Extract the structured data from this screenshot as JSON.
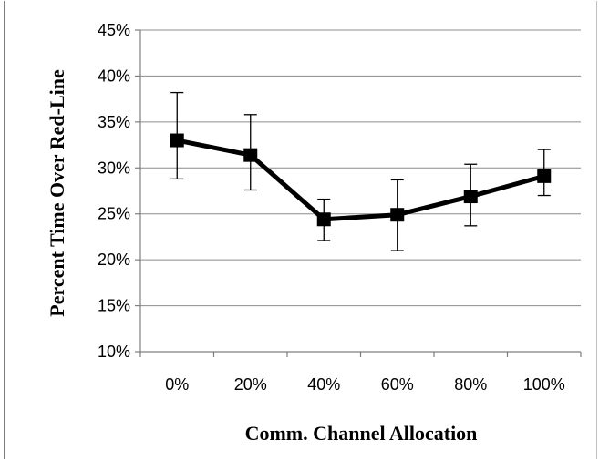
{
  "chart_data": {
    "type": "line",
    "xlabel": "Comm. Channel Allocation",
    "ylabel": "Percent Time Over Red-Line",
    "categories": [
      "0%",
      "20%",
      "40%",
      "60%",
      "80%",
      "100%"
    ],
    "ylim": [
      0.1,
      0.45
    ],
    "y_ticks": [
      "10%",
      "15%",
      "20%",
      "25%",
      "30%",
      "35%",
      "40%",
      "45%"
    ],
    "grid": true,
    "legend": "none",
    "series": [
      {
        "values": [
          0.33,
          0.314,
          0.244,
          0.249,
          0.269,
          0.291
        ],
        "err_high": [
          0.382,
          0.358,
          0.266,
          0.287,
          0.304,
          0.32
        ],
        "err_low": [
          0.288,
          0.276,
          0.221,
          0.21,
          0.237,
          0.27
        ],
        "color": "#000000",
        "marker": "square"
      }
    ]
  }
}
